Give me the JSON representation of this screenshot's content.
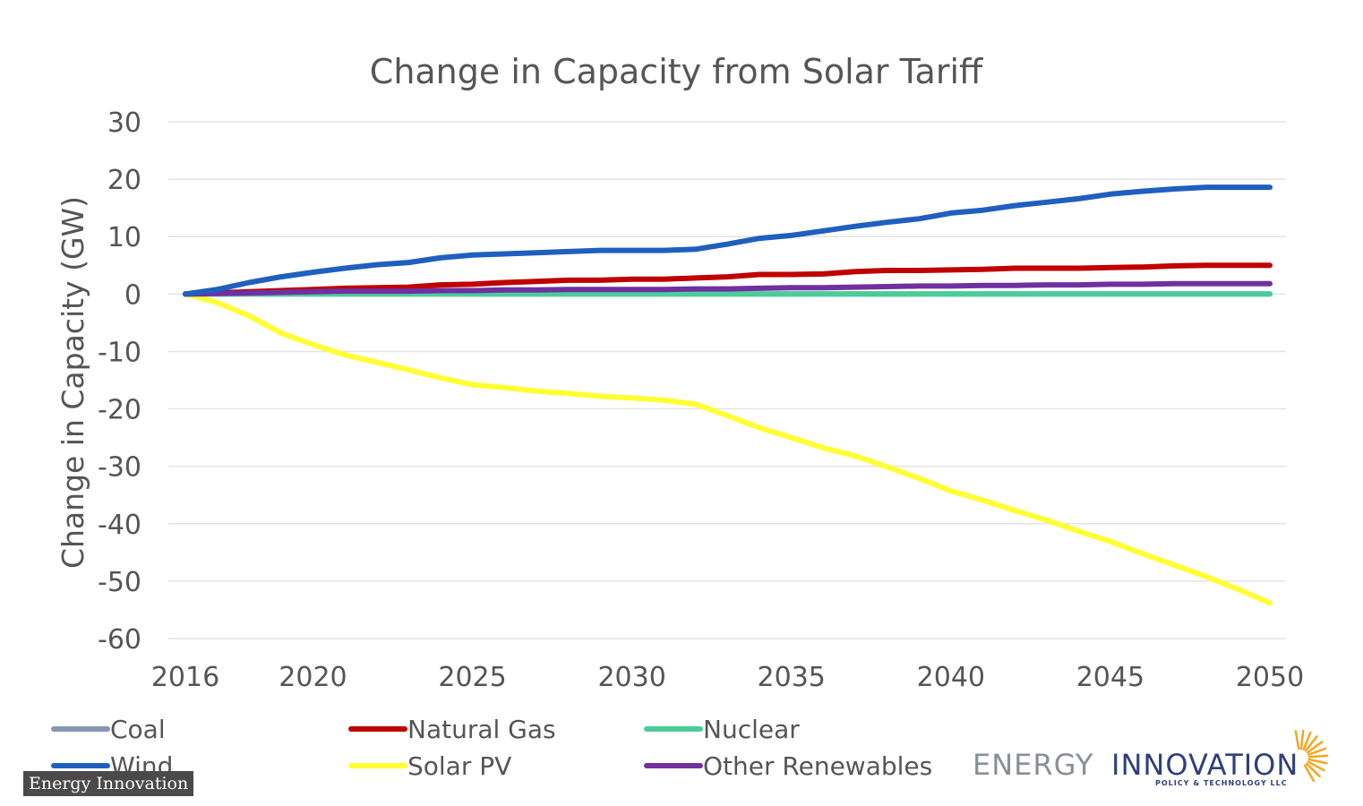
{
  "chart_data": {
    "type": "line",
    "title": "Change in Capacity from Solar Tariff",
    "ylabel": "Change in Capacity (GW)",
    "xlabel": "",
    "ylim": [
      -60,
      30
    ],
    "xlim": [
      2016,
      2050
    ],
    "yticks": [
      30,
      20,
      10,
      0,
      -10,
      -20,
      -30,
      -40,
      -50,
      -60
    ],
    "xticks": [
      2016,
      2020,
      2025,
      2030,
      2035,
      2040,
      2045,
      2050
    ],
    "grid": true,
    "legend_position": "bottom",
    "x": [
      2016,
      2017,
      2018,
      2019,
      2020,
      2021,
      2022,
      2023,
      2024,
      2025,
      2026,
      2027,
      2028,
      2029,
      2030,
      2031,
      2032,
      2033,
      2034,
      2035,
      2036,
      2037,
      2038,
      2039,
      2040,
      2041,
      2042,
      2043,
      2044,
      2045,
      2046,
      2047,
      2048,
      2049,
      2050
    ],
    "series": [
      {
        "name": "Coal",
        "color": "#8497b0",
        "values": [
          0,
          0,
          0,
          0,
          0,
          0,
          0,
          0,
          0,
          0,
          0,
          0,
          0,
          0,
          0,
          0,
          0,
          0,
          0,
          0,
          0,
          0,
          0,
          0,
          0,
          0,
          0,
          0,
          0,
          0,
          0,
          0,
          0,
          0,
          0
        ]
      },
      {
        "name": "Natural Gas",
        "color": "#c00000",
        "values": [
          0,
          0.2,
          0.4,
          0.6,
          0.8,
          1.0,
          1.1,
          1.2,
          1.6,
          1.7,
          2.0,
          2.2,
          2.4,
          2.4,
          2.6,
          2.6,
          2.8,
          3.0,
          3.4,
          3.4,
          3.5,
          3.9,
          4.1,
          4.1,
          4.2,
          4.3,
          4.5,
          4.5,
          4.5,
          4.6,
          4.7,
          4.9,
          5.0,
          5.0,
          5.0
        ]
      },
      {
        "name": "Nuclear",
        "color": "#4ccc9a",
        "values": [
          0,
          0,
          0,
          0,
          0,
          0,
          0,
          0,
          0,
          0,
          0,
          0,
          0,
          0,
          0,
          0,
          0,
          0,
          0,
          0,
          0,
          0,
          0,
          0,
          0,
          0,
          0,
          0,
          0,
          0,
          0,
          0,
          0,
          0,
          0
        ]
      },
      {
        "name": "Wind",
        "color": "#1f5fbf",
        "values": [
          0,
          0.8,
          2.0,
          3.0,
          3.8,
          4.5,
          5.1,
          5.5,
          6.3,
          6.8,
          7.0,
          7.2,
          7.4,
          7.6,
          7.6,
          7.6,
          7.8,
          8.7,
          9.7,
          10.2,
          11.0,
          11.8,
          12.5,
          13.1,
          14.1,
          14.6,
          15.4,
          16.0,
          16.6,
          17.4,
          17.9,
          18.3,
          18.6,
          18.6,
          18.6
        ]
      },
      {
        "name": "Solar PV",
        "color": "#ffff33",
        "values": [
          0,
          -1.5,
          -3.8,
          -6.8,
          -8.8,
          -10.6,
          -11.9,
          -13.2,
          -14.6,
          -15.8,
          -16.3,
          -16.9,
          -17.3,
          -17.8,
          -18.1,
          -18.5,
          -19.2,
          -21.2,
          -23.3,
          -25.0,
          -26.8,
          -28.2,
          -30.1,
          -32.1,
          -34.3,
          -35.9,
          -37.7,
          -39.4,
          -41.3,
          -43.1,
          -45.2,
          -47.2,
          -49.2,
          -51.4,
          -53.8
        ]
      },
      {
        "name": "Other Renewables",
        "color": "#7030a0",
        "values": [
          0,
          0.1,
          0.2,
          0.3,
          0.4,
          0.5,
          0.5,
          0.5,
          0.6,
          0.6,
          0.7,
          0.7,
          0.8,
          0.8,
          0.8,
          0.8,
          0.9,
          0.9,
          1.0,
          1.1,
          1.1,
          1.2,
          1.3,
          1.4,
          1.4,
          1.5,
          1.5,
          1.6,
          1.6,
          1.7,
          1.7,
          1.8,
          1.8,
          1.8,
          1.8
        ]
      }
    ]
  },
  "logo": {
    "word1": "ENERGY",
    "word2": "INNOVATION",
    "subtitle": "POLICY & TECHNOLOGY LLC",
    "accent": "#f5a623"
  },
  "watermark": "Energy Innovation"
}
